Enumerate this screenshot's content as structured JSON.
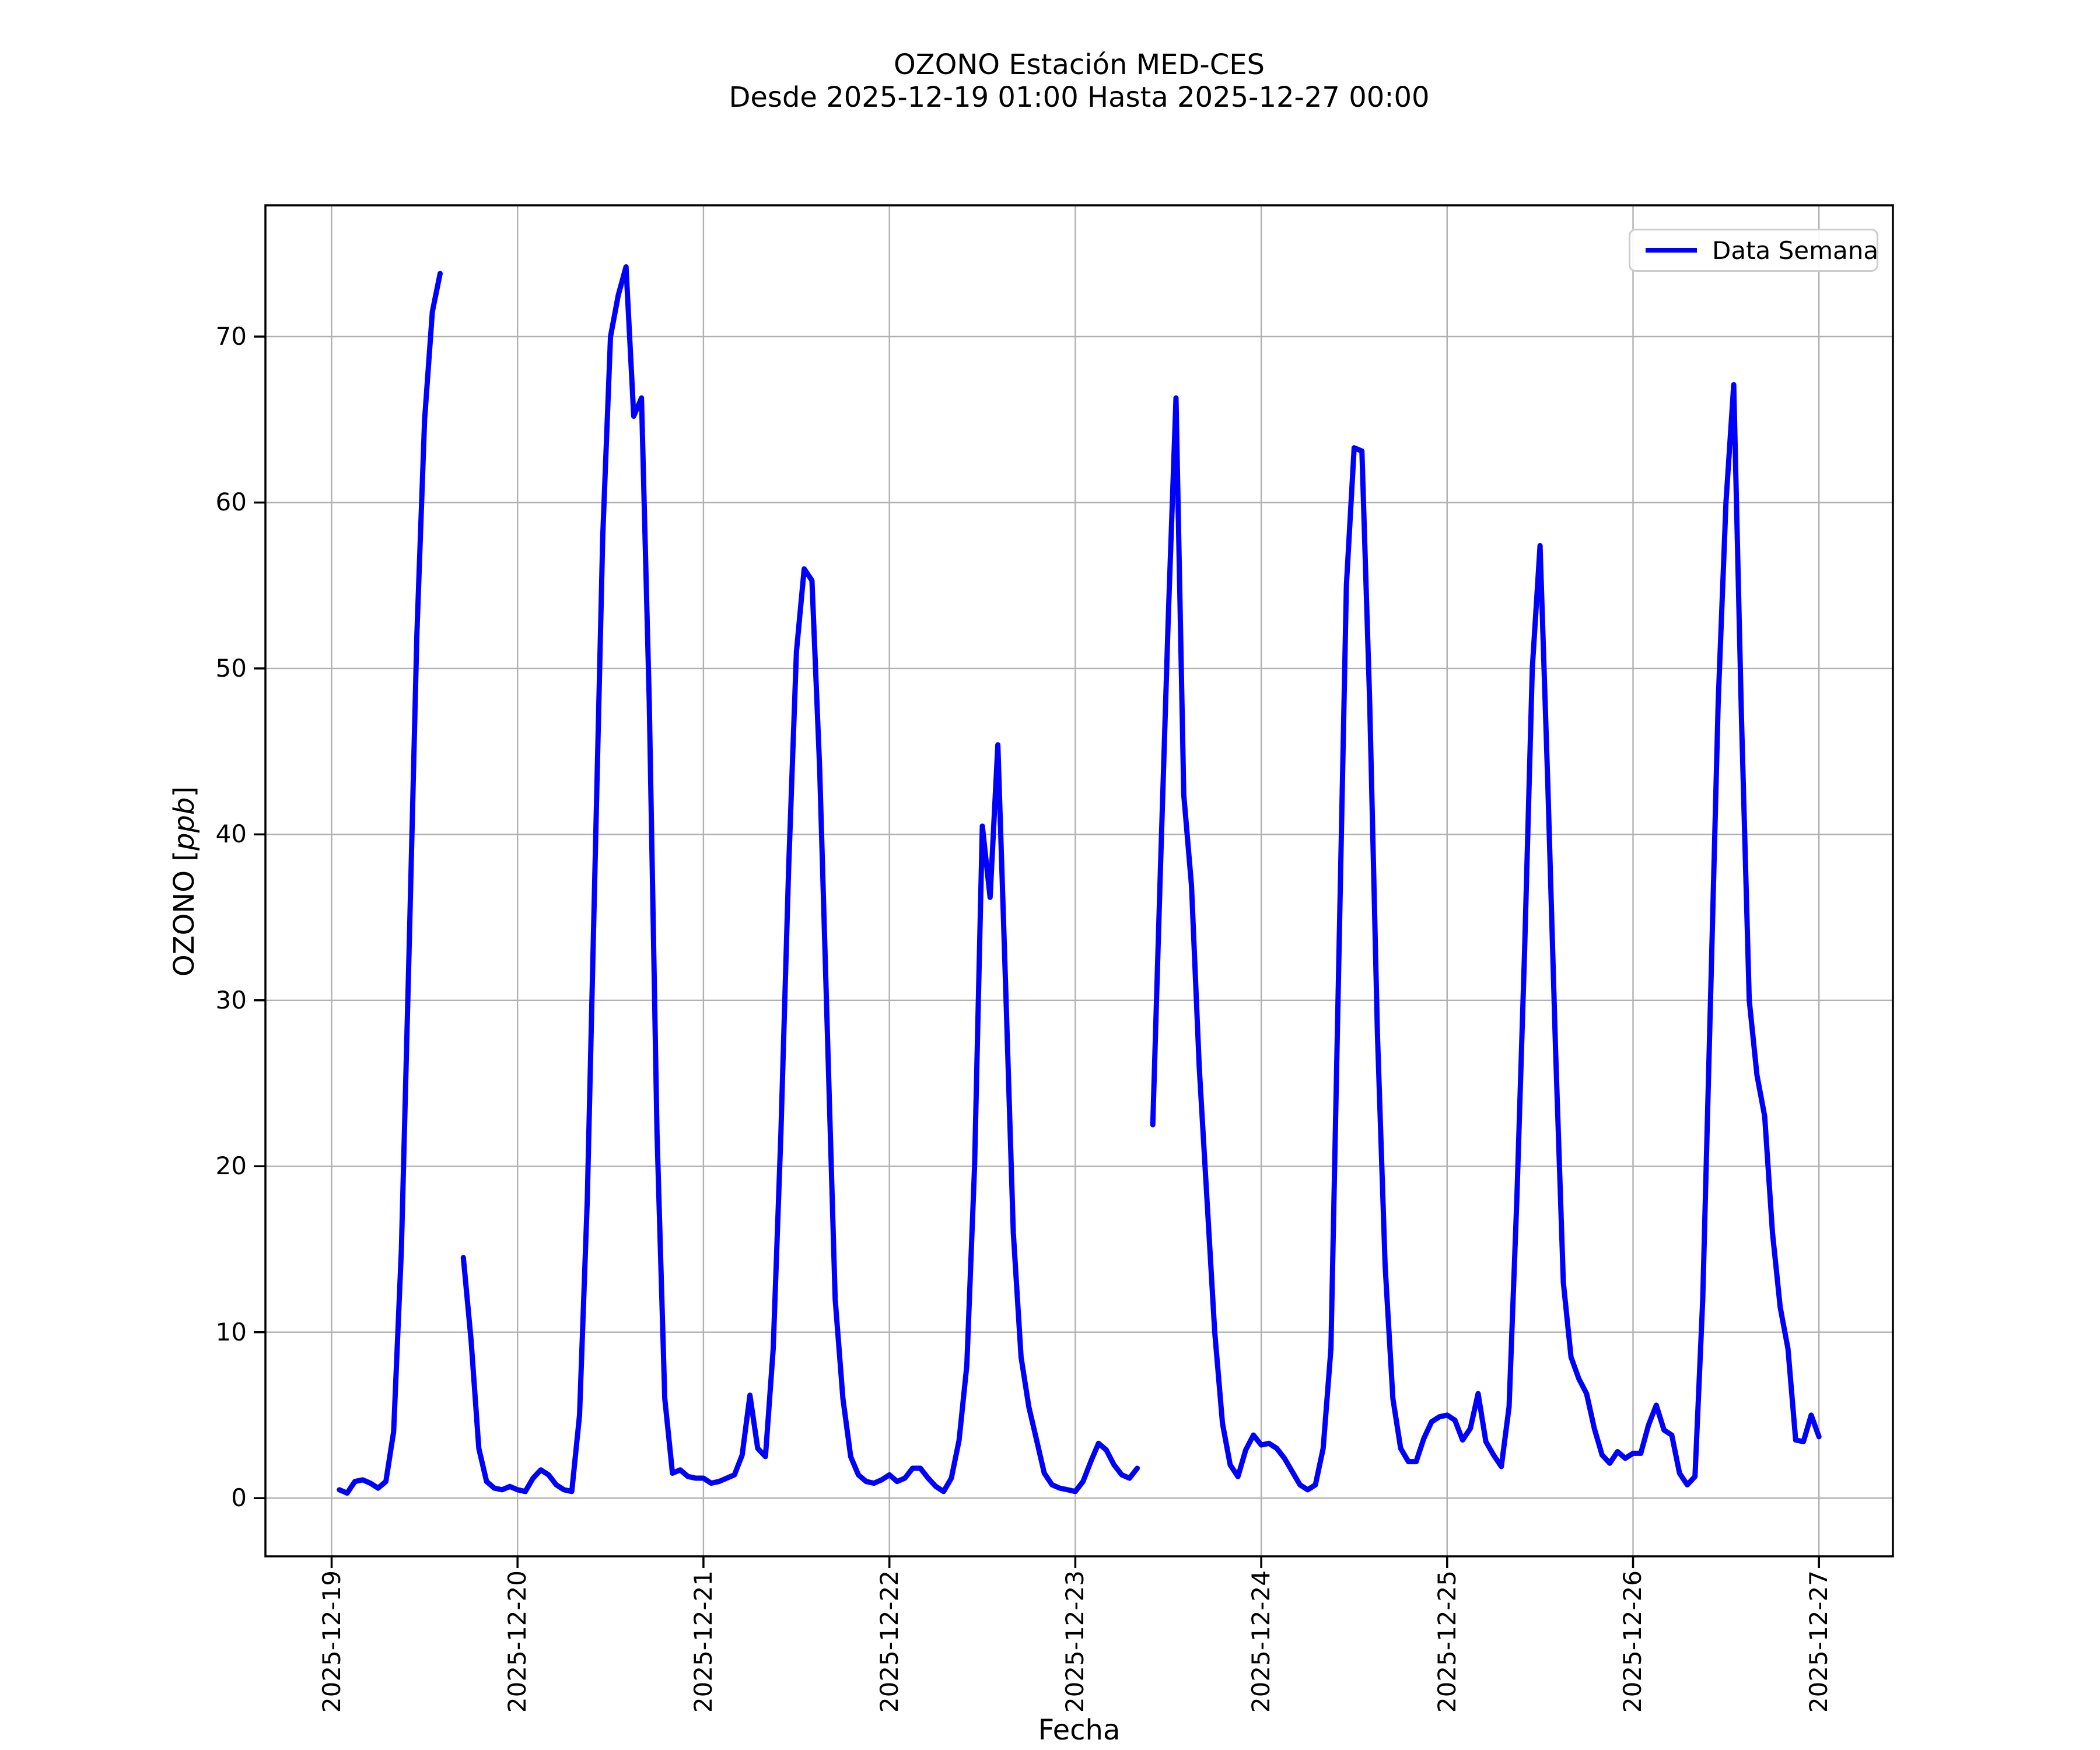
{
  "title": {
    "line1": "OZONO Estación MED-CES",
    "line2": "Desde 2025-12-19 01:00 Hasta 2025-12-27 00:00"
  },
  "legend": {
    "label": "Data Semana",
    "position": "upper right"
  },
  "axes": {
    "xlabel": "Fecha",
    "ylabel_prefix": "OZONO [",
    "ylabel_italic": "ppb",
    "ylabel_suffix": "]"
  },
  "chart_data": {
    "type": "line",
    "title": "OZONO Estación MED-CES",
    "subtitle": "Desde 2025-12-19 01:00 Hasta 2025-12-27 00:00",
    "xlabel": "Fecha",
    "ylabel": "OZONO [ppb]",
    "grid": true,
    "background": "#ffffff",
    "grid_color": "#b0b0b0",
    "x_tick_labels": [
      "2025-12-19",
      "2025-12-20",
      "2025-12-21",
      "2025-12-22",
      "2025-12-23",
      "2025-12-24",
      "2025-12-25",
      "2025-12-26",
      "2025-12-27"
    ],
    "y_ticks": [
      0,
      10,
      20,
      30,
      40,
      50,
      60,
      70
    ],
    "ylim": [
      -3.51,
      77.91
    ],
    "x_start": "2025-12-19 01:00",
    "x_step_hours": 1,
    "series": [
      {
        "name": "Data Semana",
        "color": "#0000ff",
        "values": [
          0.5,
          0.3,
          1.0,
          1.1,
          0.9,
          0.6,
          1.0,
          4.0,
          15,
          33,
          52,
          65,
          71.5,
          73.8,
          null,
          null,
          14.5,
          9.5,
          3.0,
          1.0,
          0.6,
          0.5,
          0.7,
          0.5,
          0.4,
          1.2,
          1.7,
          1.4,
          0.8,
          0.5,
          0.4,
          5,
          18,
          38,
          58,
          70,
          72.5,
          74.2,
          65.2,
          66.3,
          48,
          22,
          6,
          1.5,
          1.7,
          1.3,
          1.2,
          1.2,
          0.9,
          1.0,
          1.2,
          1.4,
          2.6,
          6.2,
          3.0,
          2.5,
          9,
          22,
          38,
          51,
          56.0,
          55.3,
          44,
          28,
          12,
          6,
          2.5,
          1.4,
          1.0,
          0.9,
          1.1,
          1.4,
          1.0,
          1.2,
          1.8,
          1.8,
          1.2,
          0.7,
          0.4,
          1.2,
          3.5,
          8,
          20,
          40.5,
          36.2,
          45.4,
          31,
          16,
          8.5,
          5.5,
          3.5,
          1.5,
          0.8,
          0.6,
          0.5,
          0.4,
          1.0,
          2.2,
          3.3,
          2.9,
          2.0,
          1.4,
          1.2,
          1.8,
          null,
          22.5,
          38,
          53,
          66.3,
          42.4,
          36.9,
          26,
          18,
          10,
          4.5,
          2.0,
          1.3,
          2.9,
          3.8,
          3.2,
          3.3,
          3.0,
          2.4,
          1.6,
          0.8,
          0.5,
          0.8,
          3.0,
          9,
          32,
          55,
          63.3,
          63.1,
          48,
          28,
          14,
          6,
          3.0,
          2.2,
          2.2,
          3.6,
          4.6,
          4.9,
          5.0,
          4.7,
          3.5,
          4.2,
          6.3,
          3.4,
          2.6,
          1.9,
          5.5,
          18,
          33,
          50,
          57.4,
          43,
          27,
          13,
          8.5,
          7.2,
          6.3,
          4.2,
          2.6,
          2.1,
          2.8,
          2.4,
          2.7,
          2.7,
          4.4,
          5.6,
          4.1,
          3.8,
          1.5,
          0.8,
          1.3,
          12,
          30,
          48,
          60,
          67.1,
          47,
          30,
          25.5,
          23,
          16,
          11.5,
          9,
          3.5,
          3.4,
          5.0,
          3.7
        ]
      }
    ]
  }
}
